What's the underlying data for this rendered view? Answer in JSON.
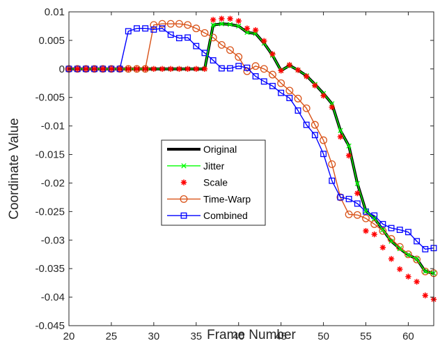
{
  "chart_data": {
    "type": "line",
    "title": "",
    "xlabel": "Frame Number",
    "ylabel": "Coordinate Value",
    "xlim": [
      20,
      63
    ],
    "ylim": [
      -0.045,
      0.01
    ],
    "grid": false,
    "legend_position": "center-left",
    "x_ticks": [
      20,
      25,
      30,
      35,
      40,
      45,
      50,
      55,
      60
    ],
    "x_tick_labels": [
      "20",
      "25",
      "30",
      "35",
      "40",
      "45",
      "50",
      "55",
      "60"
    ],
    "y_ticks": [
      0.01,
      0.005,
      0,
      -0.005,
      -0.01,
      -0.015,
      -0.02,
      -0.025,
      -0.03,
      -0.035,
      -0.04,
      -0.045
    ],
    "y_tick_labels": [
      "0.01",
      "0.005",
      "0",
      "-0.005",
      "-0.01",
      "-0.015",
      "-0.02",
      "-0.025",
      "-0.03",
      "-0.035",
      "-0.04",
      "-0.045"
    ],
    "series": [
      {
        "name": "Original",
        "color": "#000000",
        "line": true,
        "marker": "none",
        "x": [
          20,
          21,
          22,
          23,
          24,
          25,
          26,
          27,
          28,
          29,
          30,
          31,
          32,
          33,
          34,
          35,
          36,
          37,
          38,
          39,
          40,
          41,
          42,
          43,
          44,
          45,
          46,
          47,
          48,
          49,
          50,
          51,
          52,
          53,
          54,
          55,
          56,
          57,
          58,
          59,
          60,
          61,
          62,
          63
        ],
        "y": [
          0,
          0,
          0,
          0,
          0,
          0,
          0,
          0,
          0,
          0,
          0,
          0,
          0,
          0,
          0,
          0,
          0,
          0.0077,
          0.0079,
          0.0078,
          0.0075,
          0.0064,
          0.0062,
          0.0045,
          0.0024,
          -0.0003,
          0.0006,
          -0.0002,
          -0.0012,
          -0.0027,
          -0.0043,
          -0.0061,
          -0.0108,
          -0.0135,
          -0.0201,
          -0.0249,
          -0.0262,
          -0.0282,
          -0.0302,
          -0.0315,
          -0.0326,
          -0.0333,
          -0.0355,
          -0.0358
        ]
      },
      {
        "name": "Jitter",
        "color": "#00ff00",
        "line": true,
        "marker": "x",
        "x": [
          20,
          21,
          22,
          23,
          24,
          25,
          26,
          27,
          28,
          29,
          30,
          31,
          32,
          33,
          34,
          35,
          36,
          37,
          38,
          39,
          40,
          41,
          42,
          43,
          44,
          45,
          46,
          47,
          48,
          49,
          50,
          51,
          52,
          53,
          54,
          55,
          56,
          57,
          58,
          59,
          60,
          61,
          62,
          63
        ],
        "y": [
          0,
          0,
          0,
          0,
          0,
          0,
          0,
          0,
          0,
          0,
          0,
          0,
          0,
          0,
          0,
          0,
          0,
          0.0077,
          0.0079,
          0.0078,
          0.0075,
          0.0064,
          0.0062,
          0.0045,
          0.0024,
          -0.0003,
          0.0006,
          -0.0002,
          -0.0012,
          -0.0027,
          -0.0043,
          -0.0061,
          -0.0108,
          -0.0135,
          -0.0201,
          -0.0249,
          -0.0262,
          -0.0282,
          -0.0302,
          -0.0315,
          -0.0326,
          -0.0333,
          -0.0355,
          -0.0358
        ]
      },
      {
        "name": "Scale",
        "color": "#ff0000",
        "line": false,
        "marker": "asterisk",
        "x": [
          20,
          21,
          22,
          23,
          24,
          25,
          26,
          27,
          28,
          29,
          30,
          31,
          32,
          33,
          34,
          35,
          36,
          37,
          38,
          39,
          40,
          41,
          42,
          43,
          44,
          45,
          46,
          47,
          48,
          49,
          50,
          51,
          52,
          53,
          54,
          55,
          56,
          57,
          58,
          59,
          60,
          61,
          62,
          63
        ],
        "y": [
          0,
          0,
          0,
          0,
          0,
          0,
          0,
          0,
          0,
          0,
          0,
          0,
          0,
          0,
          0,
          0,
          0,
          0.0086,
          0.0088,
          0.0088,
          0.0084,
          0.0071,
          0.0068,
          0.0049,
          0.0026,
          -0.0003,
          0.0007,
          -0.0002,
          -0.0013,
          -0.0029,
          -0.0047,
          -0.0067,
          -0.0119,
          -0.0152,
          -0.0218,
          -0.0284,
          -0.029,
          -0.0313,
          -0.0333,
          -0.0351,
          -0.0364,
          -0.0373,
          -0.0397,
          -0.0404
        ]
      },
      {
        "name": "Time-Warp",
        "color": "#d95319",
        "line": true,
        "marker": "circle",
        "x": [
          20,
          21,
          22,
          23,
          24,
          25,
          26,
          27,
          28,
          29,
          30,
          31,
          32,
          33,
          34,
          35,
          36,
          37,
          38,
          39,
          40,
          41,
          42,
          43,
          44,
          45,
          46,
          47,
          48,
          49,
          50,
          51,
          52,
          53,
          54,
          55,
          56,
          57,
          58,
          59,
          60,
          61,
          62,
          63
        ],
        "y": [
          0,
          0,
          0,
          0,
          0,
          0,
          0,
          0,
          0,
          0,
          0.0077,
          0.0079,
          0.0079,
          0.0079,
          0.0077,
          0.0071,
          0.0063,
          0.0055,
          0.0042,
          0.0033,
          0.0021,
          -0.0004,
          0.0005,
          0.0,
          -0.001,
          -0.0025,
          -0.0038,
          -0.0052,
          -0.0069,
          -0.0098,
          -0.0125,
          -0.0167,
          -0.0225,
          -0.0255,
          -0.0256,
          -0.0262,
          -0.0272,
          -0.0284,
          -0.0298,
          -0.0312,
          -0.0325,
          -0.0334,
          -0.0355,
          -0.0358
        ]
      },
      {
        "name": "Combined",
        "color": "#0000ff",
        "line": true,
        "marker": "square",
        "x": [
          20,
          21,
          22,
          23,
          24,
          25,
          26,
          27,
          28,
          29,
          30,
          31,
          32,
          33,
          34,
          35,
          36,
          37,
          38,
          39,
          40,
          41,
          42,
          43,
          44,
          45,
          46,
          47,
          48,
          49,
          50,
          51,
          52,
          53,
          54,
          55,
          56,
          57,
          58,
          59,
          60,
          61,
          62,
          63
        ],
        "y": [
          0,
          0,
          0,
          0,
          0,
          0,
          0,
          0.0066,
          0.0071,
          0.0071,
          0.0069,
          0.0071,
          0.006,
          0.0054,
          0.0055,
          0.004,
          0.0028,
          0.0015,
          0.0001,
          0.0001,
          0.0005,
          0.0002,
          -0.0013,
          -0.0022,
          -0.003,
          -0.0042,
          -0.0051,
          -0.0073,
          -0.0098,
          -0.0116,
          -0.0149,
          -0.0196,
          -0.0225,
          -0.0228,
          -0.0236,
          -0.025,
          -0.0257,
          -0.0272,
          -0.0279,
          -0.0282,
          -0.0286,
          -0.0302,
          -0.0316,
          -0.0314
        ]
      }
    ]
  }
}
